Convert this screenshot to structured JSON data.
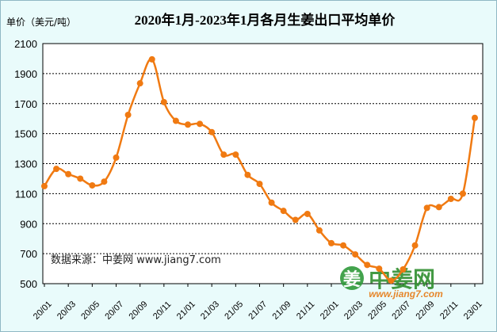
{
  "chart_data": {
    "type": "line",
    "title": "2020年1月-2023年1月各月生姜出口平均单价",
    "ylabel": "单价（美元/吨）",
    "ylim": [
      500,
      2100
    ],
    "yticks": [
      500,
      700,
      900,
      1100,
      1300,
      1500,
      1700,
      1900,
      2100
    ],
    "xtick_labels": [
      "20/01",
      "20/03",
      "20/05",
      "20/07",
      "20/09",
      "20/11",
      "21/01",
      "21/03",
      "21/05",
      "21/07",
      "21/09",
      "21/11",
      "22/01",
      "22/03",
      "22/05",
      "22/07",
      "22/09",
      "22/11",
      "23/01"
    ],
    "grid": true,
    "series": [
      {
        "color": "#f07a12",
        "x": [
          "20/01",
          "20/02",
          "20/03",
          "20/04",
          "20/05",
          "20/06",
          "20/07",
          "20/08",
          "20/09",
          "20/10",
          "20/11",
          "20/12",
          "21/01",
          "21/02",
          "21/03",
          "21/04",
          "21/05",
          "21/06",
          "21/07",
          "21/08",
          "21/09",
          "21/10",
          "21/11",
          "21/12",
          "22/01",
          "22/02",
          "22/03",
          "22/04",
          "22/05",
          "22/06",
          "22/07",
          "22/08",
          "22/09",
          "22/10",
          "22/11",
          "22/12",
          "23/01"
        ],
        "values": [
          1150,
          1265,
          1230,
          1200,
          1155,
          1180,
          1340,
          1625,
          1835,
          1995,
          1710,
          1585,
          1560,
          1565,
          1510,
          1360,
          1360,
          1225,
          1165,
          1040,
          985,
          925,
          965,
          855,
          770,
          755,
          695,
          625,
          600,
          520,
          595,
          755,
          1005,
          1010,
          1065,
          1100,
          1605
        ]
      }
    ]
  },
  "source_text": "数据来源：中姜网 www.jiang7.com",
  "watermark": {
    "name": "中姜网",
    "url": "www.jiang7.com",
    "logo_char": "姜"
  }
}
